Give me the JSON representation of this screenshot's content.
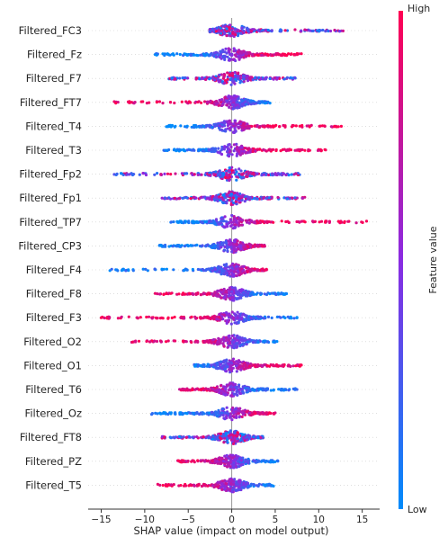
{
  "chart_data": {
    "type": "scatter",
    "subtype": "shap-beeswarm",
    "xlabel": "SHAP value (impact on model output)",
    "xlim": [
      -16.5,
      17
    ],
    "xticks": [
      -15,
      -10,
      -5,
      0,
      5,
      10,
      15
    ],
    "colorbar": {
      "label": "Feature value",
      "high_label": "High",
      "low_label": "Low",
      "high_color": "#ff0052",
      "mid_color": "#8a2be2",
      "low_color": "#008bfb"
    },
    "zero_line": true,
    "features": [
      {
        "name": "Filtered_FC3",
        "min": -2.5,
        "max": 12.8,
        "q1": -1.2,
        "q3": 6.0,
        "high_side": "mixed"
      },
      {
        "name": "Filtered_Fz",
        "min": -8.8,
        "max": 8.0,
        "q1": -3.0,
        "q3": 4.0,
        "high_side": "positive"
      },
      {
        "name": "Filtered_F7",
        "min": -7.2,
        "max": 7.3,
        "q1": -2.0,
        "q3": 3.0,
        "high_side": "mixed"
      },
      {
        "name": "Filtered_FT7",
        "min": -13.5,
        "max": 4.4,
        "q1": -1.8,
        "q3": 2.5,
        "high_side": "negative"
      },
      {
        "name": "Filtered_T4",
        "min": -7.5,
        "max": 12.6,
        "q1": -2.0,
        "q3": 3.5,
        "high_side": "positive"
      },
      {
        "name": "Filtered_T3",
        "min": -7.8,
        "max": 10.8,
        "q1": -2.0,
        "q3": 4.0,
        "high_side": "positive"
      },
      {
        "name": "Filtered_Fp2",
        "min": -13.5,
        "max": 7.8,
        "q1": -3.0,
        "q3": 3.0,
        "high_side": "mixed"
      },
      {
        "name": "Filtered_Fp1",
        "min": -8.0,
        "max": 8.4,
        "q1": -2.0,
        "q3": 2.5,
        "high_side": "mixed"
      },
      {
        "name": "Filtered_TP7",
        "min": -7.0,
        "max": 15.5,
        "q1": -1.5,
        "q3": 4.0,
        "high_side": "positive"
      },
      {
        "name": "Filtered_CP3",
        "min": -8.3,
        "max": 3.8,
        "q1": -2.0,
        "q3": 2.0,
        "high_side": "positive"
      },
      {
        "name": "Filtered_F4",
        "min": -14.0,
        "max": 4.0,
        "q1": -2.0,
        "q3": 2.0,
        "high_side": "positive"
      },
      {
        "name": "Filtered_F8",
        "min": -8.8,
        "max": 6.3,
        "q1": -2.0,
        "q3": 2.5,
        "high_side": "negative"
      },
      {
        "name": "Filtered_F3",
        "min": -15.0,
        "max": 7.5,
        "q1": -2.5,
        "q3": 3.0,
        "high_side": "negative"
      },
      {
        "name": "Filtered_O2",
        "min": -11.5,
        "max": 5.2,
        "q1": -2.0,
        "q3": 2.0,
        "high_side": "negative"
      },
      {
        "name": "Filtered_O1",
        "min": -4.3,
        "max": 8.0,
        "q1": -1.0,
        "q3": 3.5,
        "high_side": "positive"
      },
      {
        "name": "Filtered_T6",
        "min": -6.0,
        "max": 7.5,
        "q1": -1.5,
        "q3": 3.0,
        "high_side": "negative"
      },
      {
        "name": "Filtered_Oz",
        "min": -9.2,
        "max": 5.0,
        "q1": -2.0,
        "q3": 2.5,
        "high_side": "positive"
      },
      {
        "name": "Filtered_FT8",
        "min": -8.0,
        "max": 3.6,
        "q1": -2.0,
        "q3": 2.0,
        "high_side": "mixed"
      },
      {
        "name": "Filtered_PZ",
        "min": -6.2,
        "max": 5.3,
        "q1": -1.8,
        "q3": 2.0,
        "high_side": "negative"
      },
      {
        "name": "Filtered_T5",
        "min": -8.5,
        "max": 4.8,
        "q1": -2.0,
        "q3": 2.0,
        "high_side": "negative"
      }
    ]
  }
}
